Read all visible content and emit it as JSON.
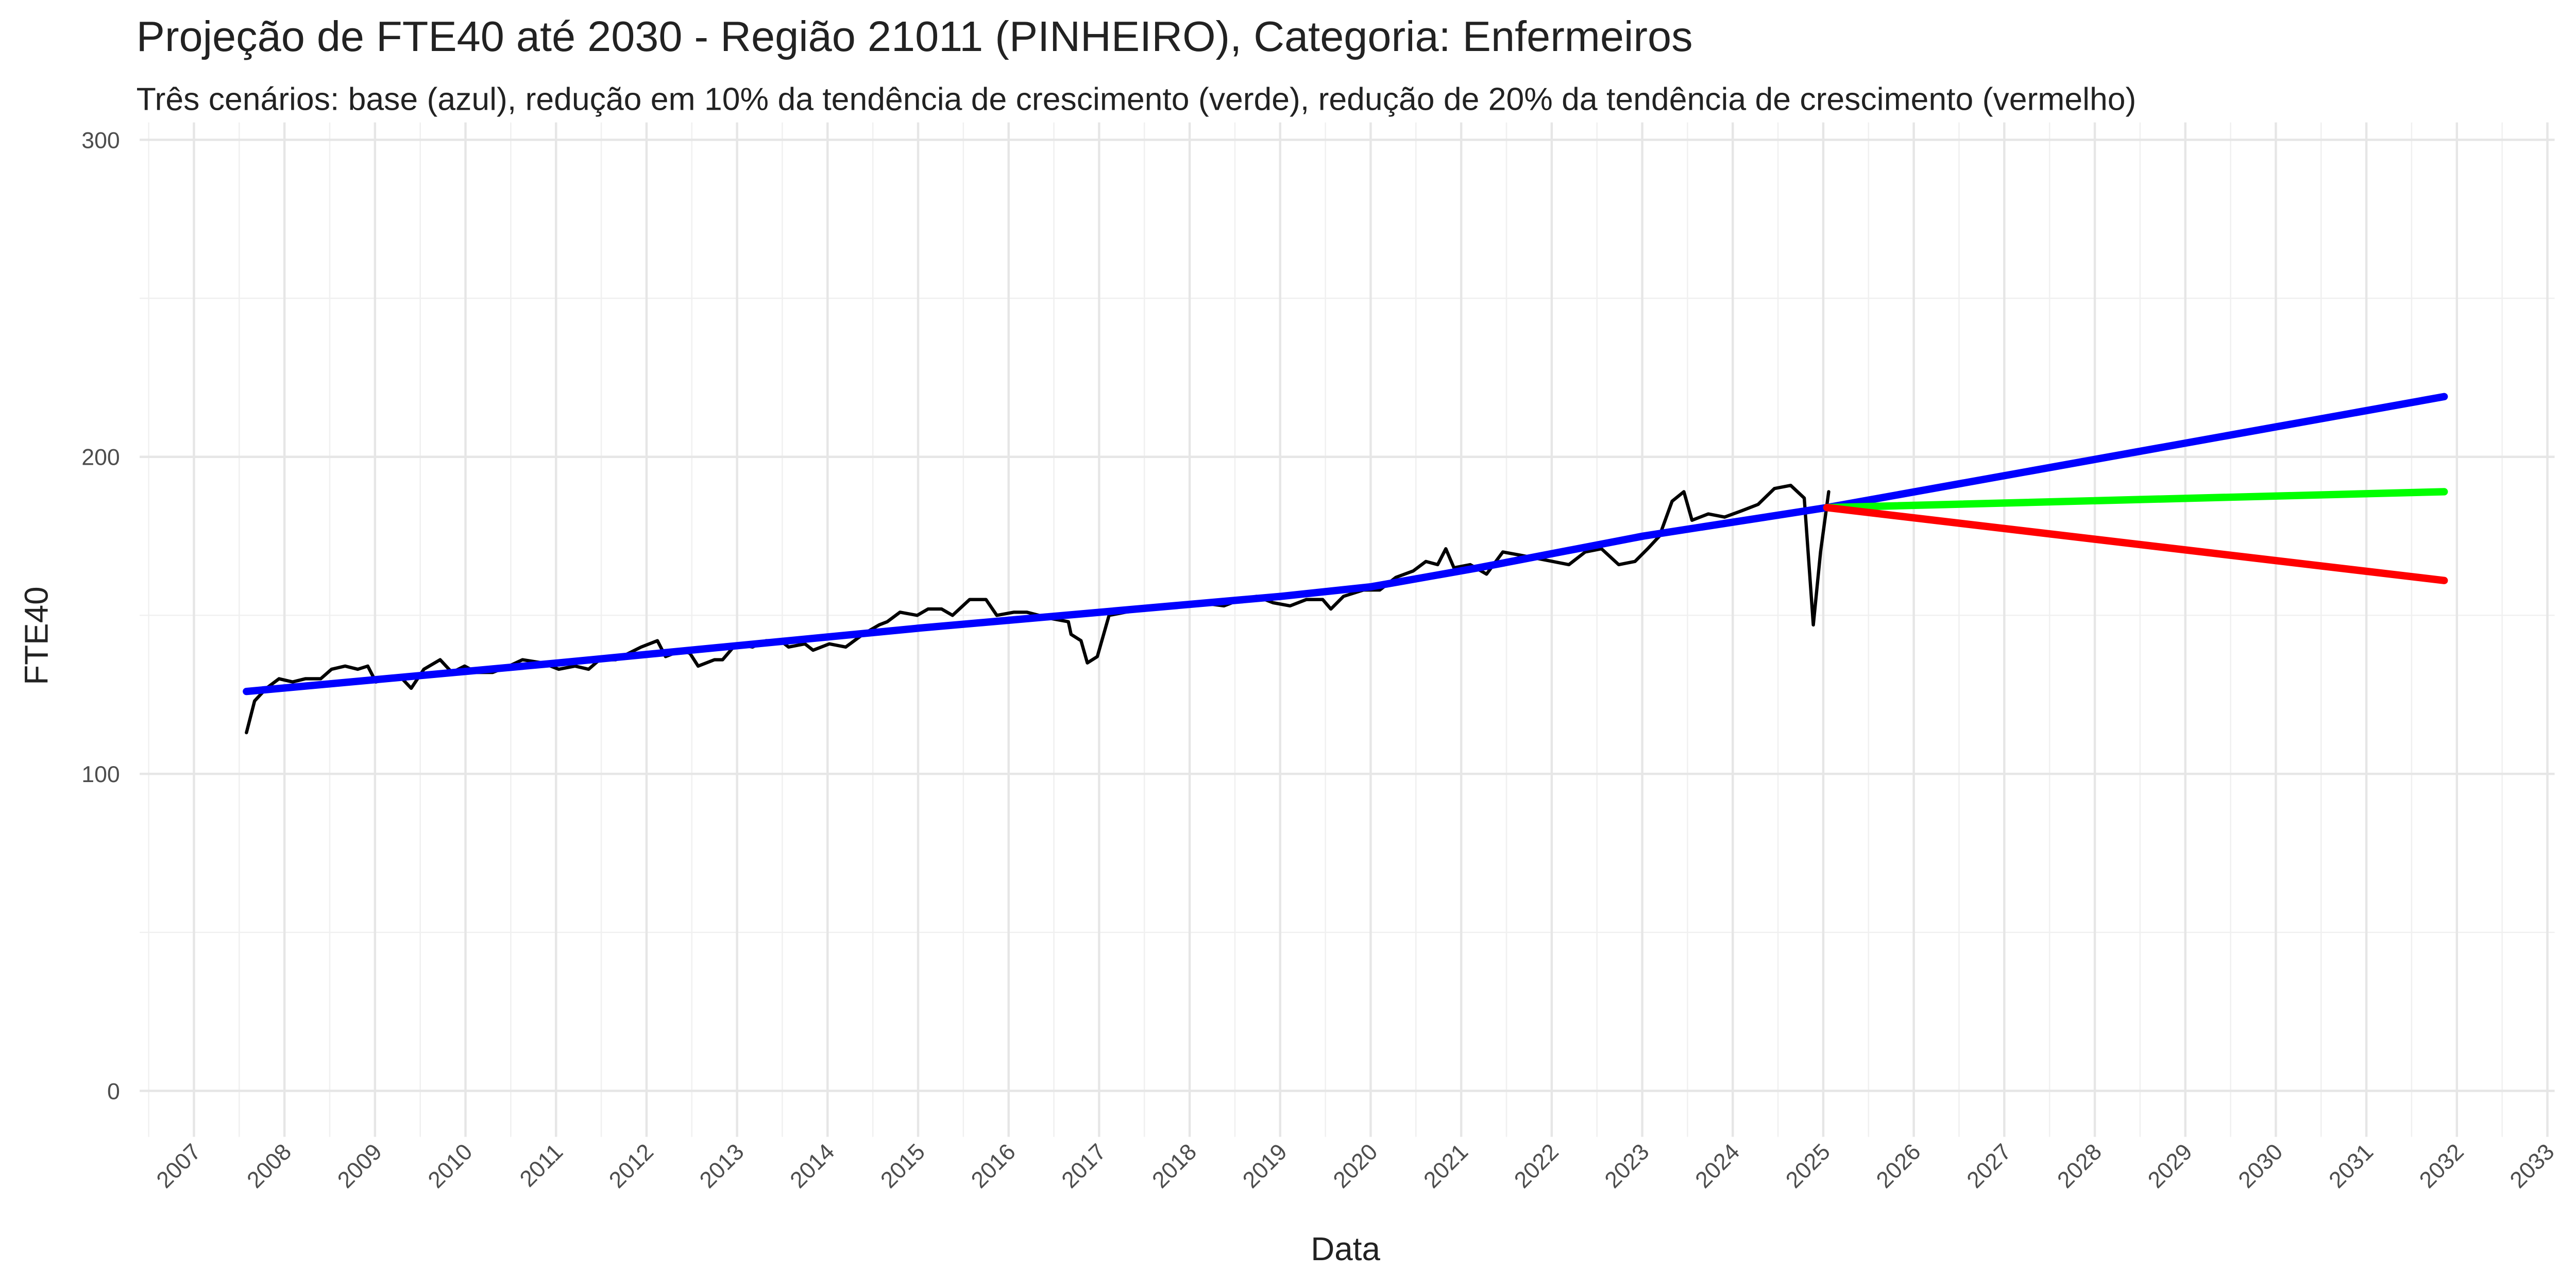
{
  "chart_data": {
    "type": "line",
    "title": "Projeção de FTE40 até 2030 - Região 21011 (PINHEIRO), Categoria: Enfermeiros",
    "subtitle": "Três cenários: base (azul), redução em 10% da tendência de crescimento (verde), redução de 20% da tendência de crescimento (vermelho)",
    "x_label": "Data",
    "y_label": "FTE40",
    "xlim": [
      2006.4,
      2033.08
    ],
    "xticks": [
      2007,
      2008,
      2009,
      2010,
      2011,
      2012,
      2013,
      2014,
      2015,
      2016,
      2017,
      2018,
      2019,
      2020,
      2021,
      2022,
      2023,
      2024,
      2025,
      2026,
      2027,
      2028,
      2029,
      2030,
      2031,
      2032,
      2033
    ],
    "ylim": [
      -14.5,
      305.5
    ],
    "yticks": [
      0,
      100,
      200,
      300
    ],
    "grid": true,
    "series": [
      {
        "color": "#000000",
        "x": [
          2007.58,
          2007.67,
          2007.8,
          2007.94,
          2008.09,
          2008.23,
          2008.4,
          2008.52,
          2008.67,
          2008.81,
          2008.92,
          2009.01,
          2009.14,
          2009.3,
          2009.4,
          2009.54,
          2009.72,
          2009.85,
          2009.99,
          2010.12,
          2010.3,
          2010.48,
          2010.63,
          2010.85,
          2011.03,
          2011.21,
          2011.36,
          2011.48,
          2011.66,
          2011.94,
          2012.12,
          2012.21,
          2012.39,
          2012.48,
          2012.57,
          2012.75,
          2012.84,
          2012.99,
          2013.17,
          2013.32,
          2013.48,
          2013.57,
          2013.75,
          2013.84,
          2014.02,
          2014.2,
          2014.39,
          2014.57,
          2014.66,
          2014.8,
          2014.99,
          2015.11,
          2015.26,
          2015.38,
          2015.57,
          2015.75,
          2015.87,
          2016.06,
          2016.2,
          2016.47,
          2016.66,
          2016.69,
          2016.8,
          2016.87,
          2016.98,
          2017.11,
          2017.29,
          2017.56,
          2017.83,
          2018.11,
          2018.38,
          2018.56,
          2018.74,
          2018.92,
          2019.11,
          2019.29,
          2019.47,
          2019.56,
          2019.7,
          2019.92,
          2020.1,
          2020.28,
          2020.47,
          2020.61,
          2020.74,
          2020.83,
          2020.92,
          2021.1,
          2021.28,
          2021.46,
          2021.65,
          2021.83,
          2022.01,
          2022.19,
          2022.37,
          2022.55,
          2022.74,
          2022.92,
          2023.06,
          2023.19,
          2023.33,
          2023.46,
          2023.55,
          2023.73,
          2023.91,
          2024.1,
          2024.28,
          2024.46,
          2024.64,
          2024.79,
          2024.89,
          2024.97,
          2025.06
        ],
        "values": [
          113,
          123,
          127,
          130,
          129,
          130,
          130,
          133,
          134,
          133,
          134,
          129,
          130,
          130,
          127,
          133,
          136,
          132,
          134,
          132,
          132,
          134,
          136,
          135,
          133,
          134,
          133,
          136,
          136,
          140,
          142,
          137,
          139,
          138,
          134,
          136,
          136,
          141,
          140,
          142,
          142,
          140,
          141,
          139,
          141,
          140,
          144,
          147,
          148,
          151,
          150,
          152,
          152,
          150,
          155,
          155,
          150,
          151,
          151,
          149,
          148,
          144,
          142,
          135,
          137,
          150,
          151,
          152,
          153,
          154,
          153,
          155,
          156,
          154,
          153,
          155,
          155,
          152,
          156,
          158,
          158,
          162,
          164,
          167,
          166,
          171,
          165,
          166,
          163,
          170,
          169,
          168,
          167,
          166,
          170,
          171,
          166,
          167,
          171,
          175,
          186,
          189,
          180,
          182,
          181,
          183,
          185,
          190,
          191,
          187,
          147,
          170,
          189
        ]
      },
      {
        "color": "#0000ff",
        "x": [
          2007.58,
          2011.03,
          2015.02,
          2019.01,
          2020.0,
          2021.19,
          2023.01,
          2025.04,
          2031.86
        ],
        "values": [
          126,
          135,
          146,
          156,
          159,
          165,
          175,
          184,
          219
        ]
      },
      {
        "color": "#00ff00",
        "x": [
          2025.04,
          2031.86
        ],
        "values": [
          184,
          189
        ]
      },
      {
        "color": "#ff0000",
        "x": [
          2025.04,
          2031.86
        ],
        "values": [
          184,
          161
        ]
      }
    ]
  }
}
